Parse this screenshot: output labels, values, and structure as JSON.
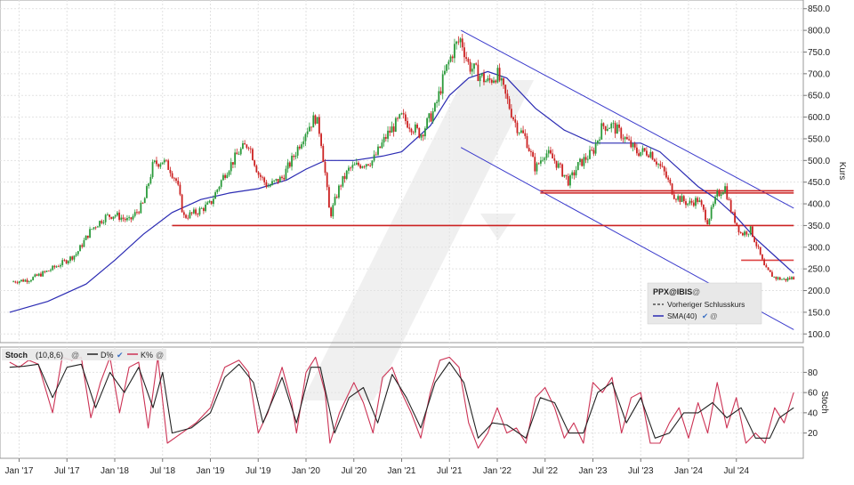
{
  "chart_data": [
    {
      "type": "candlestick",
      "instrument": "PPX@IBIS",
      "ylabel": "Kurs",
      "ylim": [
        100,
        850
      ],
      "yticks": [
        "850.0",
        "800.0",
        "750.0",
        "700.0",
        "650.0",
        "600.0",
        "550.0",
        "500.0",
        "450.0",
        "400.0",
        "350.0",
        "300.0",
        "250.0",
        "200.0",
        "150.0",
        "100.0"
      ],
      "x_range": [
        2017.0,
        2025.0
      ],
      "xticks": [
        {
          "label": "Jan '17",
          "t": 2017.0
        },
        {
          "label": "Jul '17",
          "t": 2017.5
        },
        {
          "label": "Jan '18",
          "t": 2018.0
        },
        {
          "label": "Jul '18",
          "t": 2018.5
        },
        {
          "label": "Jan '19",
          "t": 2019.0
        },
        {
          "label": "Jul '19",
          "t": 2019.5
        },
        {
          "label": "Jan '20",
          "t": 2020.0
        },
        {
          "label": "Jul '20",
          "t": 2020.5
        },
        {
          "label": "Jan '21",
          "t": 2021.0
        },
        {
          "label": "Jul '21",
          "t": 2021.5
        },
        {
          "label": "Jan '22",
          "t": 2022.0
        },
        {
          "label": "Jul '22",
          "t": 2022.5
        },
        {
          "label": "Jan '23",
          "t": 2023.0
        },
        {
          "label": "Jul '23",
          "t": 2023.5
        },
        {
          "label": "Jan '24",
          "t": 2024.0
        },
        {
          "label": "Jul '24",
          "t": 2024.5
        }
      ],
      "close_path": [
        [
          2016.9,
          220
        ],
        [
          2017.1,
          225
        ],
        [
          2017.3,
          245
        ],
        [
          2017.5,
          270
        ],
        [
          2017.6,
          285
        ],
        [
          2017.75,
          340
        ],
        [
          2017.9,
          370
        ],
        [
          2018.0,
          375
        ],
        [
          2018.15,
          360
        ],
        [
          2018.3,
          400
        ],
        [
          2018.4,
          490
        ],
        [
          2018.5,
          500
        ],
        [
          2018.58,
          480
        ],
        [
          2018.65,
          450
        ],
        [
          2018.72,
          370
        ],
        [
          2018.85,
          380
        ],
        [
          2019.0,
          400
        ],
        [
          2019.15,
          470
        ],
        [
          2019.3,
          520
        ],
        [
          2019.4,
          540
        ],
        [
          2019.5,
          470
        ],
        [
          2019.6,
          440
        ],
        [
          2019.75,
          460
        ],
        [
          2019.85,
          500
        ],
        [
          2020.0,
          570
        ],
        [
          2020.1,
          600
        ],
        [
          2020.15,
          560
        ],
        [
          2020.2,
          470
        ],
        [
          2020.25,
          370
        ],
        [
          2020.35,
          440
        ],
        [
          2020.45,
          480
        ],
        [
          2020.55,
          490
        ],
        [
          2020.7,
          500
        ],
        [
          2020.85,
          560
        ],
        [
          2021.0,
          600
        ],
        [
          2021.1,
          580
        ],
        [
          2021.2,
          560
        ],
        [
          2021.35,
          620
        ],
        [
          2021.45,
          700
        ],
        [
          2021.55,
          760
        ],
        [
          2021.62,
          780
        ],
        [
          2021.7,
          720
        ],
        [
          2021.8,
          700
        ],
        [
          2021.9,
          680
        ],
        [
          2022.0,
          700
        ],
        [
          2022.1,
          640
        ],
        [
          2022.2,
          580
        ],
        [
          2022.3,
          550
        ],
        [
          2022.4,
          480
        ],
        [
          2022.5,
          520
        ],
        [
          2022.6,
          500
        ],
        [
          2022.75,
          450
        ],
        [
          2022.85,
          490
        ],
        [
          2023.0,
          520
        ],
        [
          2023.1,
          580
        ],
        [
          2023.2,
          580
        ],
        [
          2023.3,
          560
        ],
        [
          2023.45,
          520
        ],
        [
          2023.6,
          520
        ],
        [
          2023.75,
          470
        ],
        [
          2023.85,
          420
        ],
        [
          2024.0,
          400
        ],
        [
          2024.1,
          410
        ],
        [
          2024.2,
          360
        ],
        [
          2024.3,
          420
        ],
        [
          2024.38,
          440
        ],
        [
          2024.45,
          380
        ],
        [
          2024.55,
          330
        ],
        [
          2024.65,
          340
        ],
        [
          2024.72,
          300
        ],
        [
          2024.8,
          250
        ],
        [
          2024.9,
          230
        ],
        [
          2025.0,
          225
        ],
        [
          2025.1,
          230
        ]
      ],
      "series": [
        {
          "name": "Vorheriger Schlusskurs",
          "color": "#333333",
          "style": "dashed"
        },
        {
          "name": "SMA(40)",
          "color": "#2b2bb3",
          "values": [
            [
              2016.9,
              150
            ],
            [
              2017.3,
              175
            ],
            [
              2017.7,
              215
            ],
            [
              2018.0,
              270
            ],
            [
              2018.3,
              330
            ],
            [
              2018.6,
              380
            ],
            [
              2018.9,
              410
            ],
            [
              2019.2,
              425
            ],
            [
              2019.5,
              435
            ],
            [
              2019.8,
              455
            ],
            [
              2020.0,
              480
            ],
            [
              2020.2,
              500
            ],
            [
              2020.5,
              500
            ],
            [
              2020.8,
              510
            ],
            [
              2021.0,
              520
            ],
            [
              2021.3,
              580
            ],
            [
              2021.5,
              650
            ],
            [
              2021.7,
              690
            ],
            [
              2021.9,
              705
            ],
            [
              2022.1,
              690
            ],
            [
              2022.4,
              620
            ],
            [
              2022.7,
              570
            ],
            [
              2023.0,
              540
            ],
            [
              2023.2,
              540
            ],
            [
              2023.5,
              540
            ],
            [
              2023.7,
              520
            ],
            [
              2023.9,
              480
            ],
            [
              2024.1,
              440
            ],
            [
              2024.3,
              410
            ],
            [
              2024.5,
              370
            ],
            [
              2024.7,
              320
            ],
            [
              2024.9,
              280
            ],
            [
              2025.1,
              240
            ]
          ]
        }
      ],
      "trend_lines": {
        "channel_upper": {
          "color": "#3a3acc",
          "points": [
            [
              2021.62,
              800
            ],
            [
              2025.1,
              390
            ]
          ]
        },
        "channel_lower": {
          "color": "#3a3acc",
          "points": [
            [
              2021.62,
              530
            ],
            [
              2025.1,
              110
            ]
          ]
        },
        "support_lines": [
          {
            "color": "#cc2222",
            "y": 350,
            "from": 2018.6,
            "to": 2025.1
          },
          {
            "color": "#cc2222",
            "y": 430,
            "from": 2022.45,
            "to": 2025.1
          },
          {
            "color": "#cc2222",
            "y": 425,
            "from": 2022.45,
            "to": 2025.1
          },
          {
            "color": "#dd4444",
            "y": 270,
            "from": 2024.55,
            "to": 2025.1
          }
        ]
      },
      "legend": {
        "placement": "bottom-right",
        "title": "PPX@IBIS"
      },
      "grid": true
    },
    {
      "type": "line",
      "title": "Stoch",
      "params": "(10,8,6)",
      "ylabel": "Stoch",
      "ylim": [
        0,
        100
      ],
      "yticks": [
        "80",
        "60",
        "40",
        "20"
      ],
      "series": [
        {
          "name": "D%",
          "color": "#222222"
        },
        {
          "name": "K%",
          "color": "#cc3355"
        }
      ],
      "k_path": [
        [
          2016.9,
          90
        ],
        [
          2017.0,
          85
        ],
        [
          2017.1,
          92
        ],
        [
          2017.2,
          88
        ],
        [
          2017.35,
          40
        ],
        [
          2017.45,
          95
        ],
        [
          2017.55,
          92
        ],
        [
          2017.65,
          95
        ],
        [
          2017.75,
          35
        ],
        [
          2017.85,
          70
        ],
        [
          2017.95,
          95
        ],
        [
          2018.05,
          40
        ],
        [
          2018.15,
          85
        ],
        [
          2018.25,
          90
        ],
        [
          2018.35,
          25
        ],
        [
          2018.45,
          95
        ],
        [
          2018.55,
          10
        ],
        [
          2018.7,
          20
        ],
        [
          2018.85,
          30
        ],
        [
          2019.0,
          45
        ],
        [
          2019.15,
          85
        ],
        [
          2019.3,
          92
        ],
        [
          2019.4,
          80
        ],
        [
          2019.5,
          20
        ],
        [
          2019.6,
          40
        ],
        [
          2019.75,
          85
        ],
        [
          2019.85,
          50
        ],
        [
          2019.9,
          20
        ],
        [
          2020.0,
          80
        ],
        [
          2020.1,
          95
        ],
        [
          2020.2,
          60
        ],
        [
          2020.25,
          10
        ],
        [
          2020.35,
          40
        ],
        [
          2020.5,
          70
        ],
        [
          2020.6,
          50
        ],
        [
          2020.7,
          20
        ],
        [
          2020.8,
          75
        ],
        [
          2020.9,
          85
        ],
        [
          2021.0,
          60
        ],
        [
          2021.1,
          40
        ],
        [
          2021.2,
          15
        ],
        [
          2021.3,
          60
        ],
        [
          2021.4,
          92
        ],
        [
          2021.5,
          95
        ],
        [
          2021.6,
          85
        ],
        [
          2021.7,
          30
        ],
        [
          2021.8,
          5
        ],
        [
          2021.9,
          20
        ],
        [
          2022.0,
          45
        ],
        [
          2022.1,
          20
        ],
        [
          2022.2,
          25
        ],
        [
          2022.3,
          10
        ],
        [
          2022.4,
          55
        ],
        [
          2022.5,
          65
        ],
        [
          2022.6,
          45
        ],
        [
          2022.7,
          15
        ],
        [
          2022.8,
          30
        ],
        [
          2022.9,
          10
        ],
        [
          2023.0,
          70
        ],
        [
          2023.1,
          60
        ],
        [
          2023.2,
          75
        ],
        [
          2023.3,
          20
        ],
        [
          2023.4,
          55
        ],
        [
          2023.5,
          60
        ],
        [
          2023.6,
          10
        ],
        [
          2023.7,
          10
        ],
        [
          2023.8,
          30
        ],
        [
          2023.9,
          45
        ],
        [
          2024.0,
          15
        ],
        [
          2024.1,
          50
        ],
        [
          2024.2,
          20
        ],
        [
          2024.3,
          70
        ],
        [
          2024.4,
          25
        ],
        [
          2024.5,
          55
        ],
        [
          2024.6,
          10
        ],
        [
          2024.7,
          20
        ],
        [
          2024.8,
          10
        ],
        [
          2024.9,
          45
        ],
        [
          2025.0,
          30
        ],
        [
          2025.1,
          60
        ]
      ],
      "d_path": [
        [
          2016.9,
          85
        ],
        [
          2017.05,
          86
        ],
        [
          2017.2,
          88
        ],
        [
          2017.35,
          55
        ],
        [
          2017.5,
          85
        ],
        [
          2017.65,
          88
        ],
        [
          2017.8,
          45
        ],
        [
          2017.95,
          80
        ],
        [
          2018.1,
          60
        ],
        [
          2018.25,
          85
        ],
        [
          2018.4,
          45
        ],
        [
          2018.5,
          80
        ],
        [
          2018.6,
          20
        ],
        [
          2018.8,
          25
        ],
        [
          2019.0,
          40
        ],
        [
          2019.15,
          75
        ],
        [
          2019.3,
          88
        ],
        [
          2019.45,
          70
        ],
        [
          2019.55,
          30
        ],
        [
          2019.75,
          75
        ],
        [
          2019.9,
          30
        ],
        [
          2020.05,
          85
        ],
        [
          2020.15,
          85
        ],
        [
          2020.3,
          20
        ],
        [
          2020.45,
          55
        ],
        [
          2020.6,
          65
        ],
        [
          2020.75,
          30
        ],
        [
          2020.9,
          78
        ],
        [
          2021.05,
          55
        ],
        [
          2021.2,
          25
        ],
        [
          2021.35,
          70
        ],
        [
          2021.5,
          90
        ],
        [
          2021.65,
          70
        ],
        [
          2021.8,
          15
        ],
        [
          2021.95,
          30
        ],
        [
          2022.1,
          28
        ],
        [
          2022.3,
          15
        ],
        [
          2022.45,
          55
        ],
        [
          2022.6,
          50
        ],
        [
          2022.75,
          20
        ],
        [
          2022.9,
          20
        ],
        [
          2023.05,
          60
        ],
        [
          2023.2,
          70
        ],
        [
          2023.35,
          30
        ],
        [
          2023.5,
          55
        ],
        [
          2023.65,
          15
        ],
        [
          2023.8,
          20
        ],
        [
          2023.95,
          40
        ],
        [
          2024.1,
          40
        ],
        [
          2024.25,
          50
        ],
        [
          2024.4,
          35
        ],
        [
          2024.55,
          45
        ],
        [
          2024.7,
          15
        ],
        [
          2024.85,
          15
        ],
        [
          2024.95,
          35
        ],
        [
          2025.1,
          45
        ]
      ]
    }
  ]
}
